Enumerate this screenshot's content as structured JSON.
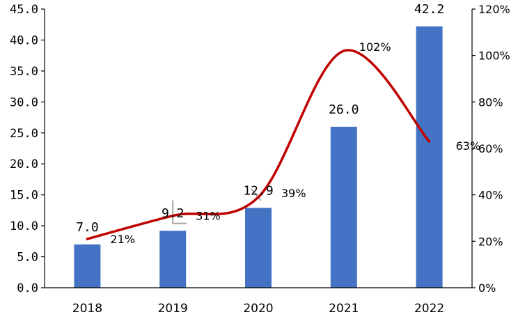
{
  "chart_data": {
    "type": "bar",
    "categories": [
      "2018",
      "2019",
      "2020",
      "2021",
      "2022"
    ],
    "series": [
      {
        "type": "bar",
        "axis": "left",
        "values": [
          7.0,
          9.2,
          12.9,
          26.0,
          42.2
        ],
        "labels": [
          "7.0",
          "9.2",
          "12.9",
          "26.0",
          "42.2"
        ],
        "color": "#4472C4"
      },
      {
        "type": "line",
        "axis": "right",
        "values": [
          21,
          31,
          39,
          102,
          63
        ],
        "labels": [
          "21%",
          "31%",
          "39%",
          "102%",
          "63%"
        ],
        "color": "#C00000"
      }
    ],
    "y_left": {
      "ylim": [
        0,
        45
      ],
      "ticks": [
        "0.0",
        "5.0",
        "10.0",
        "15.0",
        "20.0",
        "25.0",
        "30.0",
        "35.0",
        "40.0",
        "45.0"
      ]
    },
    "y_right": {
      "ylim": [
        0,
        120
      ],
      "ticks": [
        "0%",
        "20%",
        "40%",
        "60%",
        "80%",
        "100%",
        "120%"
      ]
    },
    "grid": false,
    "legend": "none",
    "colors": {
      "bar": "#4472C4",
      "line": "#C00000",
      "leader": "#A6A6A6"
    }
  }
}
